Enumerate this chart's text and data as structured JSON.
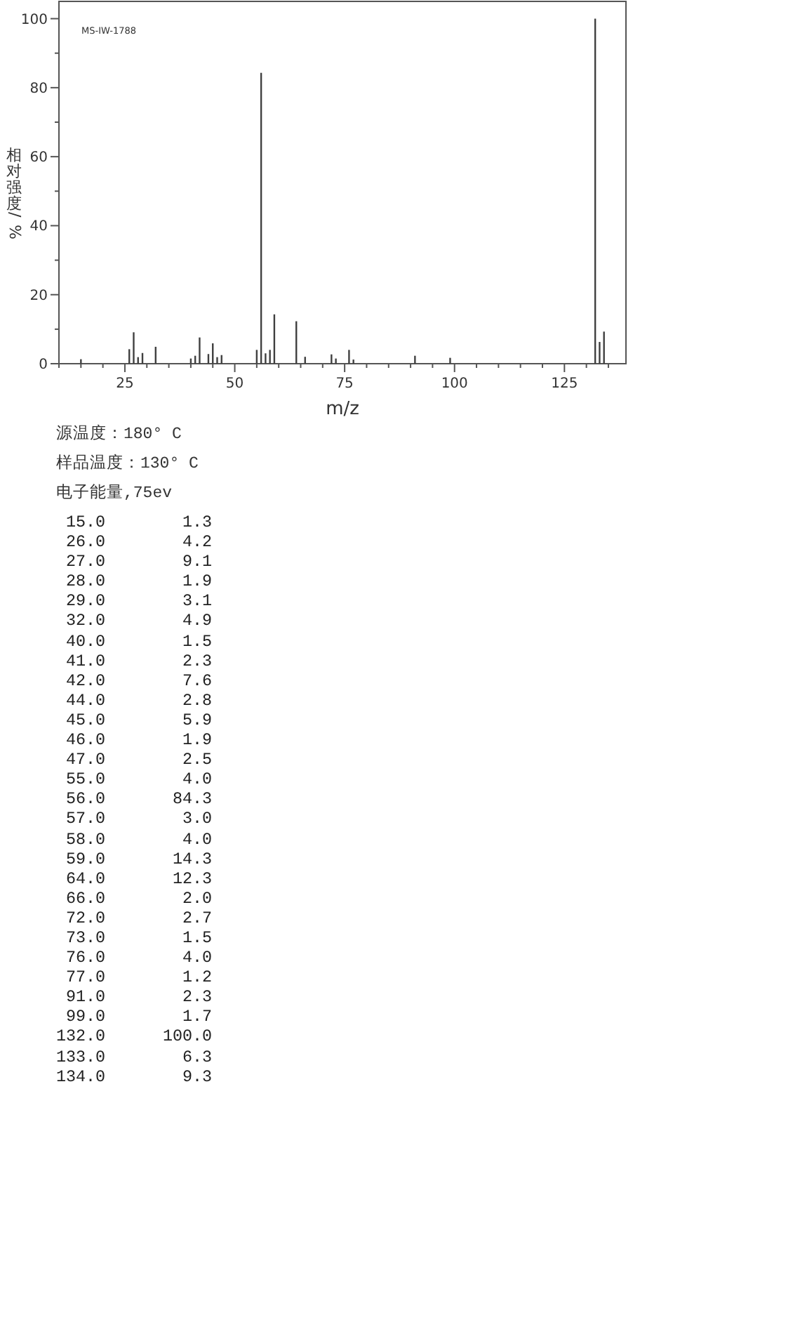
{
  "chart_data": [
    {
      "type": "bar",
      "xlabel": "m/z",
      "ylabel": "相对强度/%",
      "x": [
        15,
        26,
        27,
        28,
        29,
        32,
        40,
        41,
        42,
        44,
        45,
        46,
        47,
        55,
        56,
        57,
        58,
        59,
        64,
        66,
        72,
        73,
        76,
        77,
        91,
        99,
        132,
        133,
        134
      ],
      "values": [
        1.3,
        4.2,
        9.1,
        1.9,
        3.1,
        4.9,
        1.5,
        2.3,
        7.6,
        2.8,
        5.9,
        1.9,
        2.5,
        4.0,
        84.3,
        3.0,
        4.0,
        14.3,
        12.3,
        2.0,
        2.7,
        1.5,
        4.0,
        1.2,
        2.3,
        1.7,
        100.0,
        6.3,
        9.3
      ],
      "color": "#404040",
      "xlim": [
        10,
        139
      ],
      "xticks": [
        {
          "value": 10,
          "label": null
        },
        {
          "value": 15,
          "label": null
        },
        {
          "value": 20,
          "label": null
        },
        25,
        {
          "value": 30,
          "label": null
        },
        {
          "value": 35,
          "label": null
        },
        {
          "value": 40,
          "label": null
        },
        {
          "value": 45,
          "label": null
        },
        50,
        {
          "value": 55,
          "label": null
        },
        {
          "value": 60,
          "label": null
        },
        {
          "value": 65,
          "label": null
        },
        {
          "value": 70,
          "label": null
        },
        75,
        {
          "value": 80,
          "label": null
        },
        {
          "value": 85,
          "label": null
        },
        {
          "value": 90,
          "label": null
        },
        {
          "value": 95,
          "label": null
        },
        100,
        {
          "value": 105,
          "label": null
        },
        {
          "value": 110,
          "label": null
        },
        {
          "value": 115,
          "label": null
        },
        {
          "value": 120,
          "label": null
        },
        125,
        {
          "value": 130,
          "label": null
        },
        {
          "value": 135,
          "label": null
        }
      ],
      "ylim": [
        0,
        105
      ],
      "yticks": [
        0,
        {
          "value": 10,
          "label": null
        },
        20,
        {
          "value": 30,
          "label": null
        },
        40,
        {
          "value": 50,
          "label": null
        },
        60,
        {
          "value": 70,
          "label": null
        },
        80,
        {
          "value": 90,
          "label": null
        },
        100
      ],
      "annotations": [
        "MS-IW-1788",
        "源温度：180° C",
        "样品温度：130° C",
        "电子能量,75ev"
      ]
    },
    {
      "type": "other",
      "categories": [
        "15.0",
        "26.0",
        "27.0",
        "28.0",
        "29.0",
        "32.0",
        "40.0",
        "41.0",
        "42.0",
        "44.0",
        "45.0",
        "46.0",
        "47.0",
        "55.0",
        "56.0",
        "57.0",
        "58.0",
        "59.0",
        "64.0",
        "66.0",
        "72.0",
        "73.0",
        "76.0",
        "77.0",
        "91.0",
        "99.0",
        "132.0",
        "133.0",
        "134.0"
      ],
      "value_labels": [
        "1.3",
        "4.2",
        "9.1",
        "1.9",
        "3.1",
        "4.9",
        "1.5",
        "2.3",
        "7.6",
        "2.8",
        "5.9",
        "1.9",
        "2.5",
        "4.0",
        "84.3",
        "3.0",
        "4.0",
        "14.3",
        "12.3",
        "2.0",
        "2.7",
        "1.5",
        "4.0",
        "1.2",
        "2.3",
        "1.7",
        "100.0",
        "6.3",
        "9.3"
      ]
    }
  ]
}
